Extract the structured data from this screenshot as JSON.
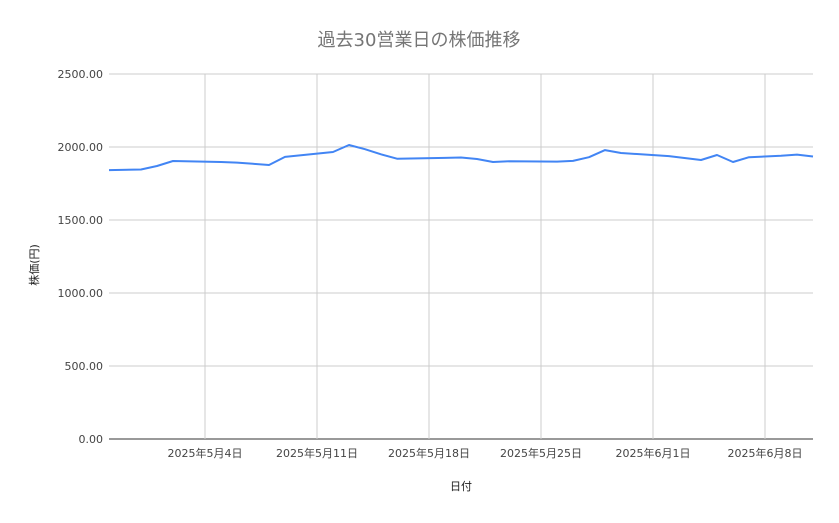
{
  "chart_data": {
    "type": "line",
    "title": "過去30営業日の株価推移",
    "xlabel": "日付",
    "ylabel": "株価(円)",
    "ylim": [
      0,
      2500
    ],
    "xlim": [
      "2025-04-28",
      "2025-06-11"
    ],
    "yticks": [
      "0.00",
      "500.00",
      "1000.00",
      "1500.00",
      "2000.00",
      "2500.00"
    ],
    "xticks": [
      {
        "date": "2025-05-04",
        "label": "2025年5月4日"
      },
      {
        "date": "2025-05-11",
        "label": "2025年5月11日"
      },
      {
        "date": "2025-05-18",
        "label": "2025年5月18日"
      },
      {
        "date": "2025-05-25",
        "label": "2025年5月25日"
      },
      {
        "date": "2025-06-01",
        "label": "2025年6月1日"
      },
      {
        "date": "2025-06-08",
        "label": "2025年6月8日"
      }
    ],
    "grid": true,
    "legend": "none",
    "line_color": "#4285f4",
    "series": [
      {
        "x": [
          "2025-04-28",
          "2025-04-30",
          "2025-05-01",
          "2025-05-02",
          "2025-05-05",
          "2025-05-06",
          "2025-05-07",
          "2025-05-08",
          "2025-05-09",
          "2025-05-12",
          "2025-05-13",
          "2025-05-14",
          "2025-05-15",
          "2025-05-16",
          "2025-05-19",
          "2025-05-20",
          "2025-05-21",
          "2025-05-22",
          "2025-05-23",
          "2025-05-26",
          "2025-05-27",
          "2025-05-28",
          "2025-05-29",
          "2025-05-30",
          "2025-06-02",
          "2025-06-04",
          "2025-06-05",
          "2025-06-06",
          "2025-06-07",
          "2025-06-09",
          "2025-06-10",
          "2025-06-11"
        ],
        "values": [
          1842,
          1846,
          1870,
          1904,
          1897,
          1893,
          1885,
          1877,
          1932,
          1966,
          2014,
          1985,
          1950,
          1920,
          1925,
          1928,
          1918,
          1897,
          1902,
          1900,
          1905,
          1930,
          1979,
          1959,
          1938,
          1911,
          1945,
          1897,
          1930,
          1940,
          1948,
          1935
        ]
      }
    ]
  }
}
